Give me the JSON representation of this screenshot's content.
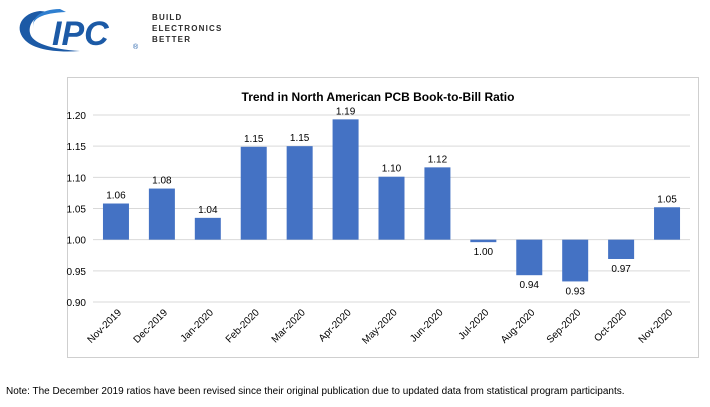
{
  "logo": {
    "brand": "IPC",
    "registered": "®",
    "tagline": [
      "BUILD",
      "ELECTRONICS",
      "BETTER"
    ]
  },
  "chart_data": {
    "type": "bar",
    "title": "Trend in North American PCB Book-to-Bill Ratio",
    "xlabel": "",
    "ylabel": "",
    "baseline": 1.0,
    "ylim": [
      0.9,
      1.2
    ],
    "yticks": [
      "0.90",
      "0.95",
      "1.00",
      "1.05",
      "1.10",
      "1.15",
      "1.20"
    ],
    "categories": [
      "Nov-2019",
      "Dec-2019",
      "Jan-2020",
      "Feb-2020",
      "Mar-2020",
      "Apr-2020",
      "May-2020",
      "Jun-2020",
      "Jul-2020",
      "Aug-2020",
      "Sep-2020",
      "Oct-2020",
      "Nov-2020"
    ],
    "values": [
      1.058,
      1.082,
      1.035,
      1.149,
      1.15,
      1.193,
      1.101,
      1.116,
      0.996,
      0.943,
      0.933,
      0.969,
      1.052
    ],
    "labels": [
      "1.06",
      "1.08",
      "1.04",
      "1.15",
      "1.15",
      "1.19",
      "1.10",
      "1.12",
      "1.00",
      "0.94",
      "0.93",
      "0.97",
      "1.05"
    ],
    "bar_color": "#4472c4",
    "grid": true
  },
  "footnote": "Note: The December 2019 ratios have been revised since their original publication due to updated data from statistical program participants."
}
